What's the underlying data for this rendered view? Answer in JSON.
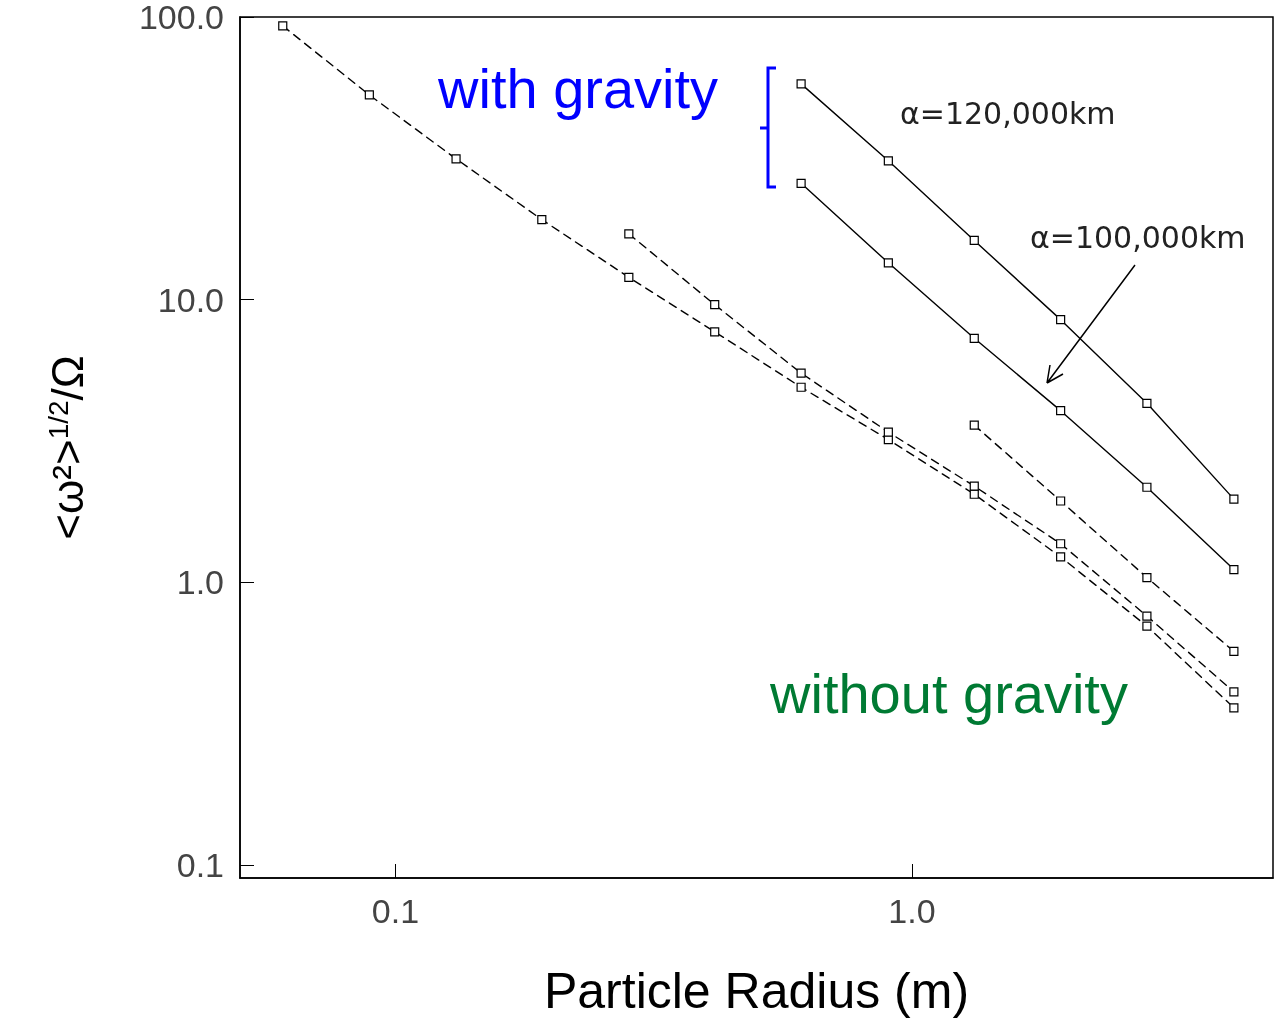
{
  "chart_data": {
    "type": "line",
    "xlabel": "Particle Radius (m)",
    "ylabel": "<ω²>$^{1/2}$/Ω",
    "log": "xy",
    "xlim": [
      0.05,
      5
    ],
    "ylim": [
      0.09,
      100
    ],
    "xticks": [
      0.1,
      {
        "value": 1,
        "label": "1.0"
      }
    ],
    "yticks": [
      0.1,
      {
        "value": 1,
        "label": "1.0"
      },
      {
        "value": 10,
        "label": "10.0"
      },
      {
        "value": 100,
        "label": "100.0"
      }
    ],
    "grid": false,
    "marker": "square",
    "series": [
      {
        "color": "#000000",
        "line_style": "dashed",
        "x": [
          0.0605,
          0.089,
          0.131,
          0.192,
          0.283,
          0.415,
          0.61,
          0.9,
          1.32,
          1.94,
          2.85,
          4.2
        ],
        "values": [
          93,
          53,
          31.5,
          19.2,
          12.0,
          7.7,
          4.9,
          3.2,
          2.05,
          1.23,
          0.7,
          0.36
        ]
      },
      {
        "color": "#000000",
        "line_style": "dashed",
        "x": [
          0.283,
          0.415,
          0.61,
          0.9,
          1.32,
          1.94,
          2.85,
          4.2
        ],
        "values": [
          17.1,
          9.6,
          5.5,
          3.4,
          2.19,
          1.37,
          0.76,
          0.41
        ]
      },
      {
        "color": "#000000",
        "line_style": "dashed",
        "x": [
          1.32,
          1.94,
          2.85,
          4.2
        ],
        "values": [
          3.6,
          1.94,
          1.04,
          0.57
        ]
      },
      {
        "color": "#000000",
        "line_style": "solid",
        "x": [
          0.61,
          0.9,
          1.32,
          1.94,
          2.85,
          4.2
        ],
        "values": [
          58,
          31,
          16.2,
          8.5,
          4.3,
          1.97
        ]
      },
      {
        "color": "#000000",
        "line_style": "solid",
        "x": [
          0.61,
          0.9,
          1.32,
          1.94,
          2.85,
          4.2
        ],
        "values": [
          25.8,
          13.5,
          7.3,
          4.05,
          2.17,
          1.11
        ]
      }
    ],
    "annotations": [
      "with gravity",
      "without gravity",
      "α=120,000km",
      "α=100,000km"
    ]
  }
}
